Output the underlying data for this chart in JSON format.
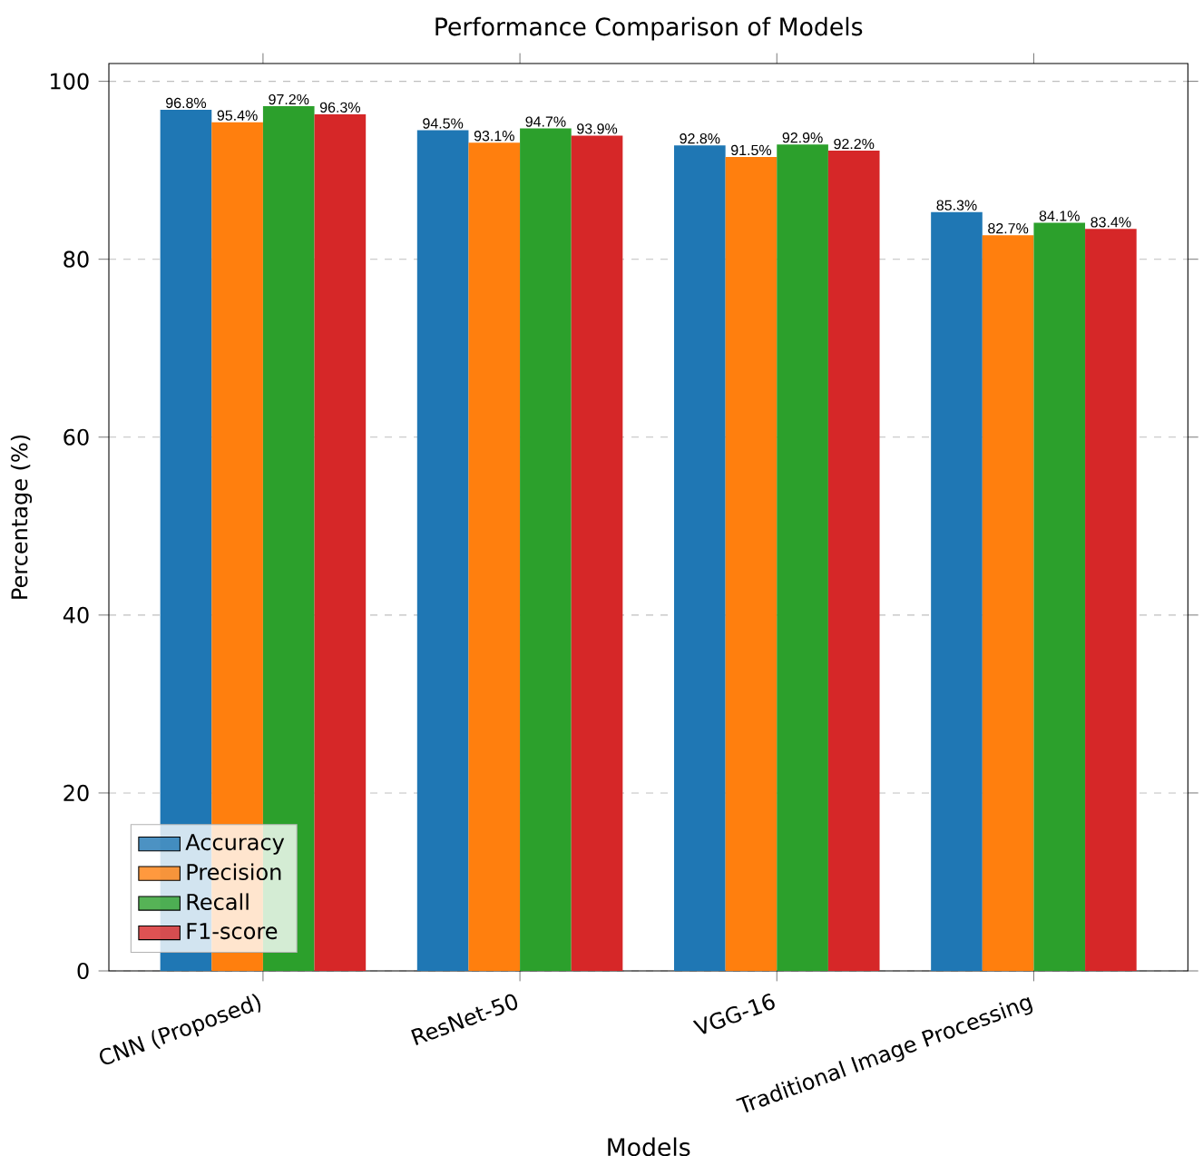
{
  "chart_data": {
    "type": "bar",
    "title": "Performance Comparison of Models",
    "xlabel": "Models",
    "ylabel": "Percentage (%)",
    "categories": [
      "CNN (Proposed)",
      "ResNet-50",
      "VGG-16",
      "Traditional Image Processing"
    ],
    "series": [
      {
        "name": "Accuracy",
        "color": "#1f77b4",
        "values": [
          96.8,
          94.5,
          92.8,
          85.3
        ],
        "value_labels": [
          "96.8%",
          "94.5%",
          "92.8%",
          "85.3%"
        ]
      },
      {
        "name": "Precision",
        "color": "#ff7f0e",
        "values": [
          95.4,
          93.1,
          91.5,
          82.7
        ],
        "value_labels": [
          "95.4%",
          "93.1%",
          "91.5%",
          "82.7%"
        ]
      },
      {
        "name": "Recall",
        "color": "#2ca02c",
        "values": [
          97.2,
          94.7,
          92.9,
          84.1
        ],
        "value_labels": [
          "97.2%",
          "94.7%",
          "92.9%",
          "84.1%"
        ]
      },
      {
        "name": "F1-score",
        "color": "#d62728",
        "values": [
          96.3,
          93.9,
          92.2,
          83.4
        ],
        "value_labels": [
          "96.3%",
          "93.9%",
          "92.2%",
          "83.4%"
        ]
      }
    ],
    "ylim": [
      0,
      102
    ],
    "yticks": [
      0,
      20,
      40,
      60,
      80,
      100
    ],
    "grid": "y",
    "legend": "bottom left"
  }
}
